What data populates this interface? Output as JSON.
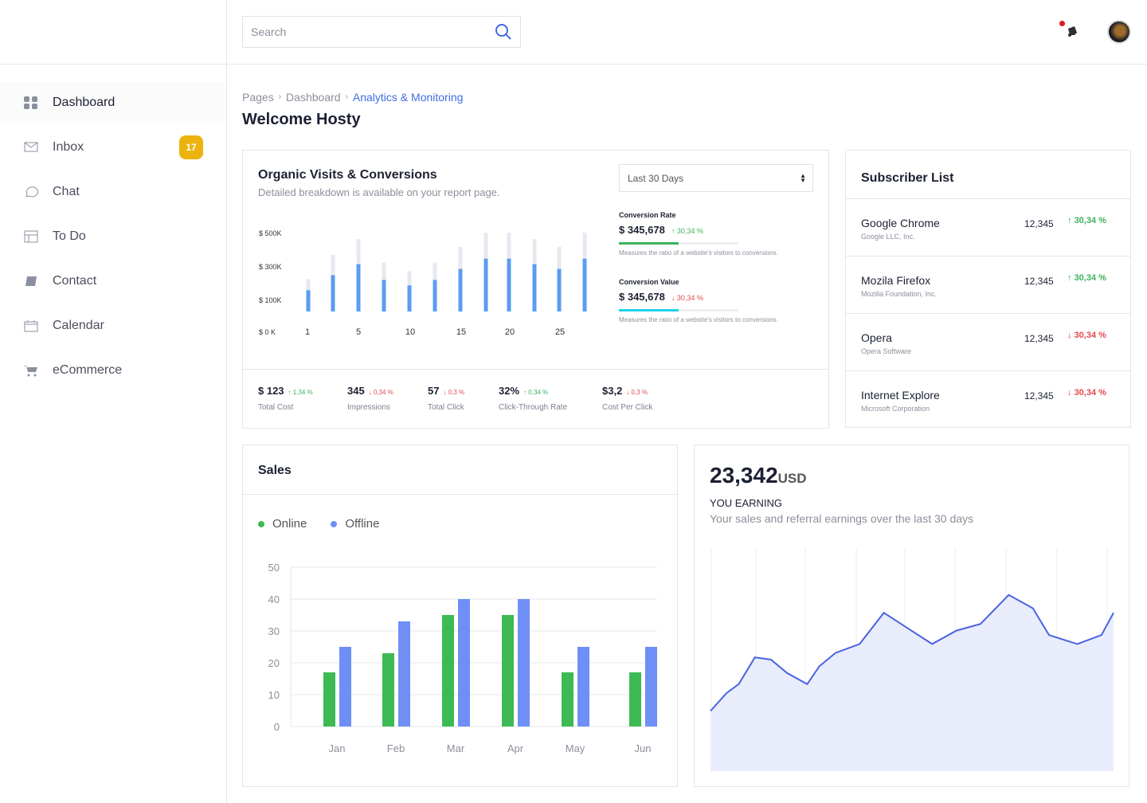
{
  "search": {
    "placeholder": "Search"
  },
  "header": {
    "notification_icon": "bell-icon",
    "avatar": "user-avatar"
  },
  "sidebar": {
    "items": [
      {
        "label": "Dashboard",
        "icon": "grid-icon",
        "active": true
      },
      {
        "label": "Inbox",
        "icon": "mail-icon",
        "badge": "17"
      },
      {
        "label": "Chat",
        "icon": "chat-icon"
      },
      {
        "label": "To Do",
        "icon": "layout-icon"
      },
      {
        "label": "Contact",
        "icon": "book-icon"
      },
      {
        "label": "Calendar",
        "icon": "calendar-icon"
      },
      {
        "label": "eCommerce",
        "icon": "cart-icon"
      }
    ],
    "badge_color": "#ecb30f"
  },
  "breadcrumb": [
    "Pages",
    "Dashboard",
    "Analytics & Monitoring"
  ],
  "page_title": "Welcome Hosty",
  "organic": {
    "title": "Organic Visits & Conversions",
    "subtitle": "Detailed breakdown is available on your report page.",
    "range": "Last 30 Days",
    "conversion_rate": {
      "label": "Conversion Rate",
      "value": "$ 345,678",
      "change": "30,34 %",
      "direction": "up",
      "progress": 0.5,
      "note": "Measures the ratio of a website's visitors to conversions."
    },
    "conversion_value": {
      "label": "Conversion Value",
      "value": "$ 345,678",
      "change": "30,34 %",
      "direction": "down",
      "progress": 0.5,
      "note": "Measures the ratio of a website's visitors to conversions."
    },
    "kpis": [
      {
        "value": "$ 123",
        "change": "1,34 %",
        "direction": "up",
        "label": "Total Cost"
      },
      {
        "value": "345",
        "change": "0,34 %",
        "direction": "down",
        "label": "Impressions"
      },
      {
        "value": "57",
        "change": "0,3 %",
        "direction": "down",
        "label": "Total Click"
      },
      {
        "value": "32%",
        "change": "0,34 %",
        "direction": "up",
        "label": "Click-Through Rate"
      },
      {
        "value": "$3,2",
        "change": "0,3 %",
        "direction": "down",
        "label": "Cost Per Click"
      }
    ]
  },
  "subscribers": {
    "title": "Subscriber List",
    "rows": [
      {
        "name": "Google Chrome",
        "company": "Google LLC, Inc.",
        "value": "12,345",
        "change": "30,34 %",
        "direction": "up"
      },
      {
        "name": "Mozila Firefox",
        "company": "Mozilla Foundation, Inc.",
        "value": "12,345",
        "change": "30,34 %",
        "direction": "up"
      },
      {
        "name": "Opera",
        "company": "Opera Software",
        "value": "12,345",
        "change": "30,34 %",
        "direction": "down"
      },
      {
        "name": "Internet Explore",
        "company": "Microsoft Corporation",
        "value": "12,345",
        "change": "30,34 %",
        "direction": "down"
      }
    ]
  },
  "sales": {
    "title": "Sales"
  },
  "earning": {
    "amount": "23,342",
    "currency": "USD",
    "label": "YOU EARNING",
    "description": "Your sales and referral earnings over the last 30 days"
  },
  "chart_data": [
    {
      "type": "bar",
      "id": "organic",
      "ytick_labels": [
        "$ 0 K",
        "$ 100K",
        "$ 300K",
        "$ 500K"
      ],
      "xtick_labels": [
        "1",
        "5",
        "10",
        "15",
        "20",
        "25"
      ],
      "ylim": [
        0,
        500000
      ],
      "series": [
        {
          "values": [
            135000,
            230000,
            300000,
            200000,
            165000,
            200000,
            270000,
            335000,
            335000,
            300000,
            270000,
            335000
          ],
          "color": "#5b9cf2"
        },
        {
          "values": [
            205000,
            360000,
            460000,
            310000,
            255000,
            310000,
            410000,
            500000,
            500000,
            460000,
            410000,
            500000
          ],
          "color": "#e6e9ef"
        }
      ]
    },
    {
      "type": "bar",
      "id": "sales",
      "categories": [
        "Jan",
        "Feb",
        "Mar",
        "Apr",
        "May",
        "Jun"
      ],
      "ylim": [
        0,
        50
      ],
      "yticks": [
        0,
        10,
        20,
        30,
        40,
        50
      ],
      "grid": true,
      "legend": "top-left",
      "series": [
        {
          "name": "Online",
          "values": [
            17,
            23,
            35,
            35,
            17,
            17
          ],
          "color": "#3dba54"
        },
        {
          "name": "Offline",
          "values": [
            25,
            33,
            40,
            40,
            25,
            25
          ],
          "color": "#6f8ff7"
        }
      ]
    },
    {
      "type": "area",
      "id": "earning",
      "grid": true,
      "color": "#4a63e0",
      "fill": "#e8ecfb",
      "x": [
        0,
        4,
        7,
        11,
        15,
        19,
        24,
        27,
        31,
        37,
        43,
        55,
        61,
        67,
        74,
        80,
        84,
        91,
        97,
        100
      ],
      "y": [
        27,
        35,
        39,
        51,
        50,
        44,
        39,
        47,
        53,
        57,
        71,
        57,
        63,
        66,
        79,
        73,
        61,
        57,
        61,
        71
      ]
    }
  ]
}
